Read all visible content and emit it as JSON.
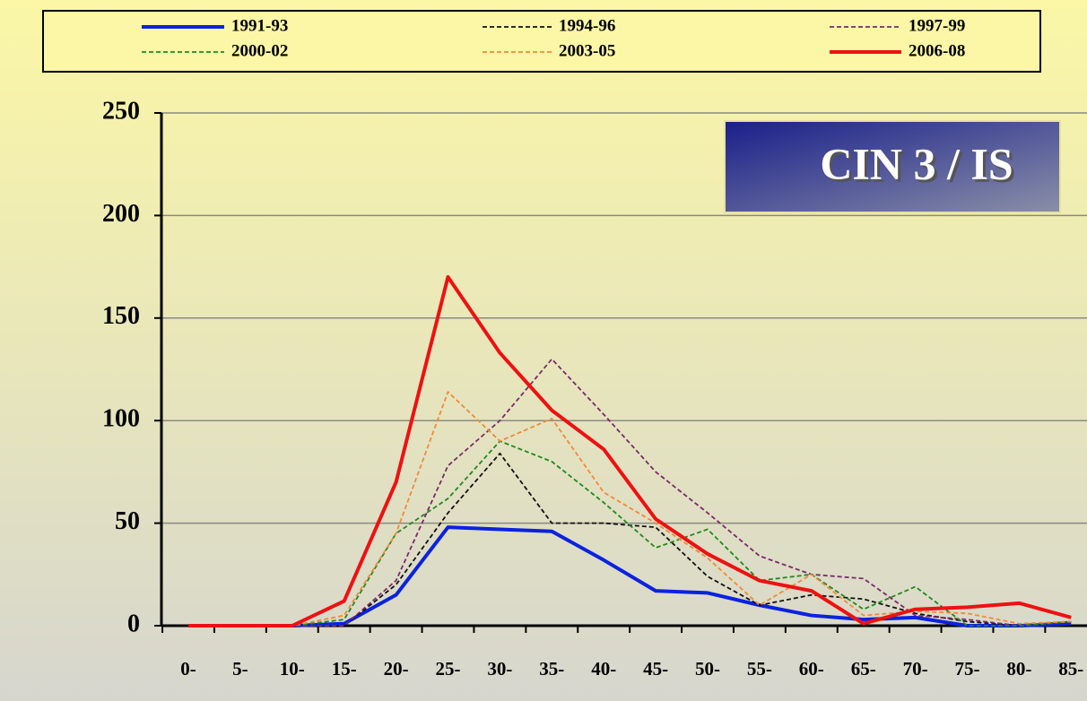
{
  "chart_data": {
    "type": "line",
    "annotation": "CIN 3 / IS",
    "categories": [
      "0-",
      "5-",
      "10-",
      "15-",
      "20-",
      "25-",
      "30-",
      "35-",
      "40-",
      "45-",
      "50-",
      "55-",
      "60-",
      "65-",
      "70-",
      "75-",
      "80-",
      "85-"
    ],
    "ylim": [
      0,
      250
    ],
    "yticks": [
      0,
      50,
      100,
      150,
      200,
      250
    ],
    "grid": true,
    "legend": "top",
    "series": [
      {
        "name": "1991-93",
        "color": "#0a22e0",
        "style": "solid",
        "values": [
          0,
          0,
          0,
          1,
          15,
          48,
          47,
          46,
          32,
          17,
          16,
          10,
          5,
          3,
          4,
          0,
          0,
          1
        ]
      },
      {
        "name": "1994-96",
        "color": "#111111",
        "style": "dashed",
        "values": [
          0,
          0,
          0,
          0,
          20,
          55,
          84,
          50,
          50,
          48,
          24,
          10,
          15,
          13,
          6,
          2,
          0,
          2
        ]
      },
      {
        "name": "1997-99",
        "color": "#7a2a6a",
        "style": "dashed",
        "values": [
          0,
          0,
          0,
          0,
          22,
          78,
          100,
          130,
          103,
          75,
          55,
          34,
          25,
          23,
          5,
          3,
          0,
          2
        ]
      },
      {
        "name": "2000-02",
        "color": "#1e8a1e",
        "style": "dashed",
        "values": [
          0,
          0,
          0,
          3,
          45,
          62,
          90,
          80,
          60,
          38,
          47,
          22,
          25,
          8,
          19,
          0,
          0,
          2
        ]
      },
      {
        "name": "2003-05",
        "color": "#f08a3a",
        "style": "dashed",
        "values": [
          0,
          0,
          0,
          5,
          45,
          114,
          90,
          101,
          65,
          50,
          33,
          10,
          25,
          5,
          7,
          6,
          1,
          2
        ]
      },
      {
        "name": "2006-08",
        "color": "#ee1111",
        "style": "solid",
        "values": [
          0,
          0,
          0,
          12,
          70,
          170,
          133,
          105,
          86,
          52,
          35,
          22,
          17,
          1,
          8,
          9,
          11,
          4
        ]
      }
    ]
  }
}
